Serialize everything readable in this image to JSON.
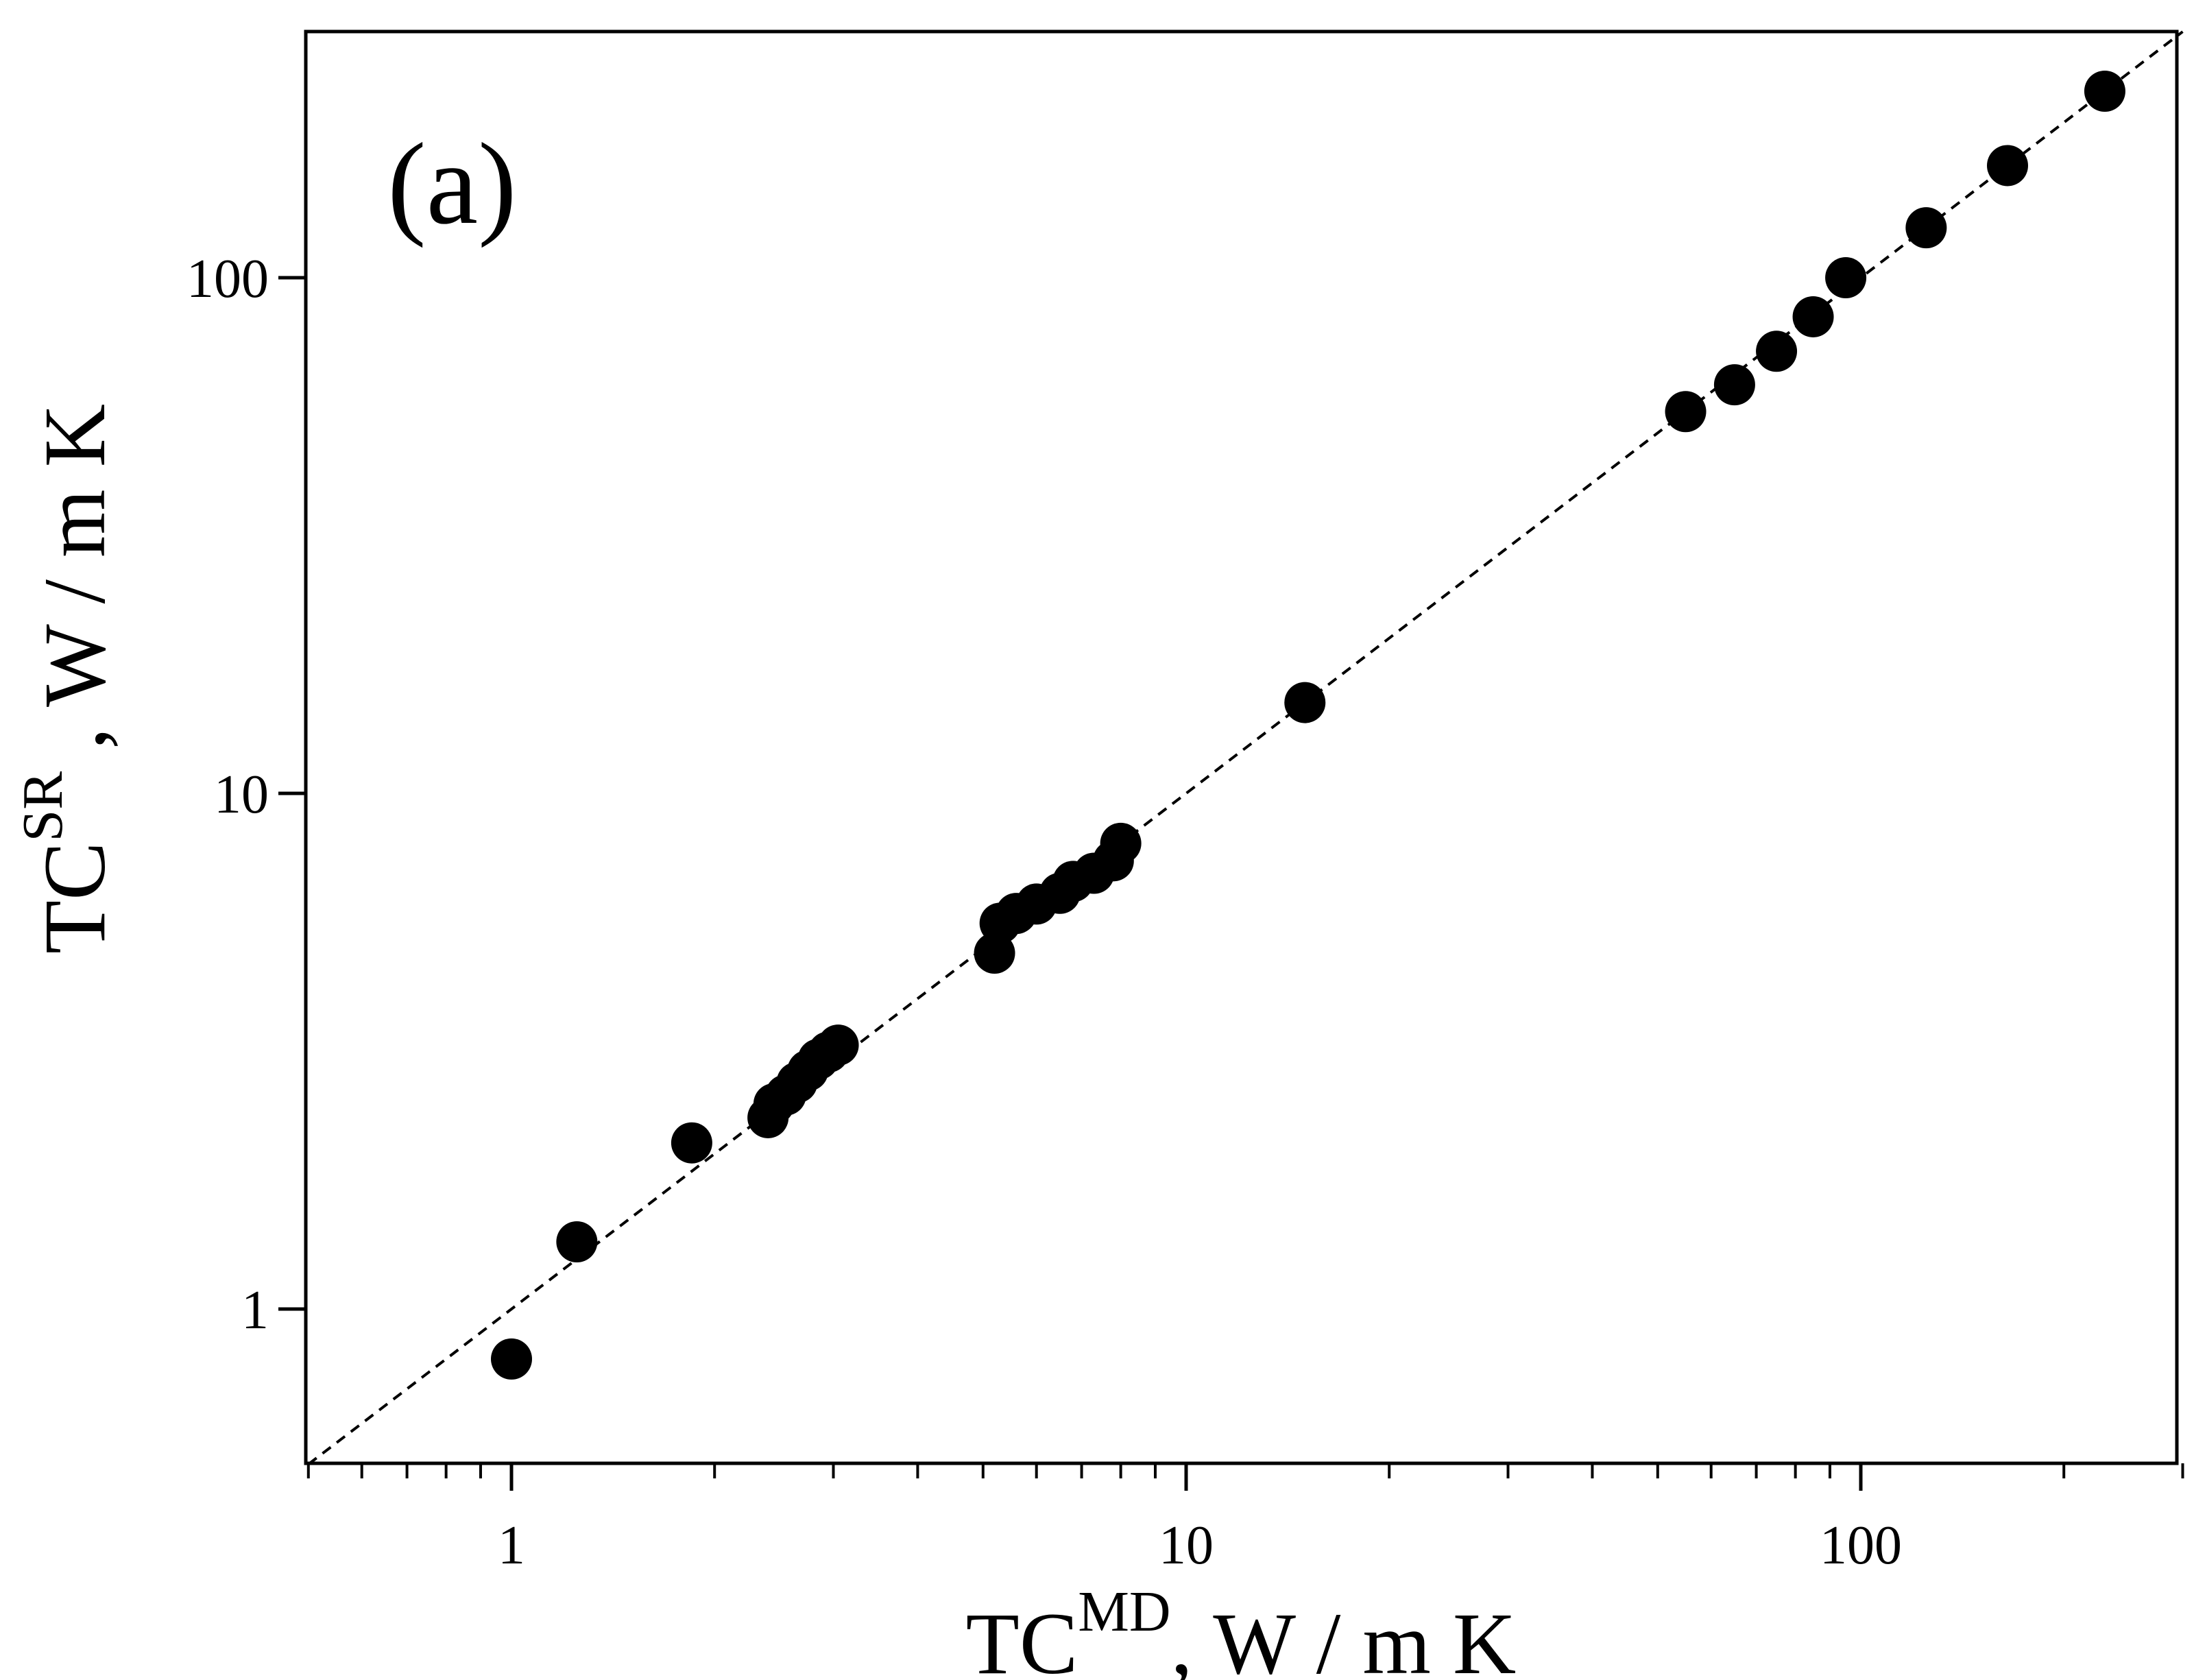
{
  "chart_data": {
    "type": "scatter",
    "panel_label": "(a)",
    "x_scale": "log",
    "y_scale": "log",
    "xlim": [
      0.5,
      300
    ],
    "ylim": [
      0.5,
      300
    ],
    "x_major_ticks": [
      1,
      10,
      100
    ],
    "x_tick_labels": [
      "1",
      "10",
      "100"
    ],
    "y_major_ticks": [
      1,
      10,
      100
    ],
    "y_tick_labels": [
      "1",
      "10",
      "100"
    ],
    "xlabel": {
      "main": "TC",
      "sup": "MD",
      "unit": ",  W / m K"
    },
    "ylabel": {
      "main": "TC",
      "sup": "SR",
      "unit": " ,  W / m K"
    },
    "reference_line": {
      "style": "dashed",
      "relation": "y = x"
    },
    "marker_color": "#000000",
    "grid": false,
    "points": [
      {
        "x": 1.0,
        "y": 0.8
      },
      {
        "x": 1.25,
        "y": 1.35
      },
      {
        "x": 1.85,
        "y": 2.1
      },
      {
        "x": 2.4,
        "y": 2.35
      },
      {
        "x": 2.45,
        "y": 2.5
      },
      {
        "x": 2.55,
        "y": 2.6
      },
      {
        "x": 2.65,
        "y": 2.75
      },
      {
        "x": 2.75,
        "y": 2.9
      },
      {
        "x": 2.85,
        "y": 3.05
      },
      {
        "x": 2.95,
        "y": 3.15
      },
      {
        "x": 3.05,
        "y": 3.25
      },
      {
        "x": 5.2,
        "y": 4.9
      },
      {
        "x": 5.3,
        "y": 5.6
      },
      {
        "x": 5.6,
        "y": 5.85
      },
      {
        "x": 6.0,
        "y": 6.1
      },
      {
        "x": 6.5,
        "y": 6.4
      },
      {
        "x": 6.8,
        "y": 6.75
      },
      {
        "x": 7.3,
        "y": 7.0
      },
      {
        "x": 7.8,
        "y": 7.4
      },
      {
        "x": 8.0,
        "y": 8.0
      },
      {
        "x": 15.0,
        "y": 15.0
      },
      {
        "x": 55,
        "y": 55
      },
      {
        "x": 65,
        "y": 62
      },
      {
        "x": 75,
        "y": 72
      },
      {
        "x": 85,
        "y": 84
      },
      {
        "x": 95,
        "y": 100
      },
      {
        "x": 125,
        "y": 125
      },
      {
        "x": 165,
        "y": 165
      },
      {
        "x": 230,
        "y": 230
      }
    ]
  }
}
